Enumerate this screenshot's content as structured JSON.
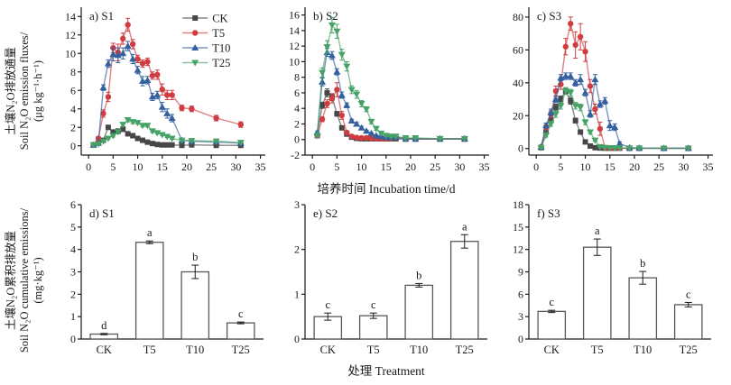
{
  "labels": {
    "flux_ylabel_zh": "土壤N₂O排放通量",
    "flux_ylabel_en": "Soil N₂O emission fluxes/",
    "flux_ylabel_unit": "(μg kg⁻¹·h⁻¹)",
    "cum_ylabel_zh": "土壤N₂O累积排放量",
    "cum_ylabel_en": "Soil N₂O cumulative emissions/",
    "cum_ylabel_unit": "(mg·kg⁻¹)",
    "incubation_xlabel": "培养时间 Incubation time/d",
    "treatment_xlabel": "处理 Treatment"
  },
  "colors": {
    "ck": "#474747",
    "t5": "#cf3d40",
    "t10": "#33609f",
    "t25": "#46a266"
  },
  "chart_data": [
    {
      "id": "a",
      "type": "line",
      "panel_label": "a) S1",
      "legend": true,
      "x": [
        1,
        2,
        3,
        4,
        5,
        6,
        7,
        8,
        9,
        10,
        11,
        12,
        13,
        14,
        15,
        16,
        17,
        19,
        21,
        26,
        31
      ],
      "xlim": [
        -1.5,
        36
      ],
      "xticks": [
        0,
        5,
        10,
        15,
        20,
        25,
        30,
        35
      ],
      "ylim": [
        -1,
        15
      ],
      "yticks": [
        0,
        2,
        4,
        6,
        8,
        10,
        12,
        14
      ],
      "series": [
        {
          "name": "CK",
          "marker": "square",
          "color": "#474747",
          "values": [
            0.1,
            0.3,
            0.6,
            2.0,
            1.5,
            1.6,
            1.8,
            1.3,
            1.1,
            0.8,
            0.6,
            0.4,
            0.25,
            0.15,
            0.1,
            0.1,
            0.1,
            0.05,
            0.1,
            0.05,
            0.05
          ],
          "err": [
            0.05,
            0.1,
            0.1,
            0.2,
            0.2,
            0.15,
            0.25,
            0.15,
            0.1,
            0.1,
            0.1,
            0.1,
            0.05,
            0.05,
            0.05,
            0.05,
            0.05,
            0.05,
            0.05,
            0.05,
            0.05
          ]
        },
        {
          "name": "T5",
          "marker": "circle",
          "color": "#cf3d40",
          "values": [
            0.1,
            0.8,
            3.5,
            5.3,
            10.6,
            10.1,
            11.6,
            13.1,
            11.0,
            9.4,
            8.9,
            9.1,
            7.6,
            7.7,
            6.1,
            5.5,
            5.5,
            4.1,
            4.0,
            3.0,
            2.3
          ],
          "err": [
            0.1,
            0.2,
            0.4,
            0.5,
            0.5,
            0.9,
            0.6,
            0.7,
            0.5,
            0.4,
            0.4,
            0.4,
            0.4,
            0.5,
            0.6,
            0.5,
            0.5,
            0.3,
            0.3,
            0.3,
            0.3
          ]
        },
        {
          "name": "T10",
          "marker": "triangle-up",
          "color": "#33609f",
          "values": [
            0.1,
            0.3,
            6.3,
            8.9,
            9.9,
            9.8,
            10.0,
            10.8,
            9.4,
            8.2,
            7.0,
            7.1,
            5.3,
            5.5,
            4.2,
            3.5,
            3.0,
            0.6,
            0.5,
            0.4,
            0.3
          ],
          "err": [
            0.05,
            0.1,
            0.3,
            0.4,
            0.7,
            0.8,
            0.6,
            0.5,
            0.5,
            0.4,
            0.5,
            0.4,
            0.4,
            0.4,
            0.5,
            0.5,
            0.4,
            0.2,
            0.1,
            0.1,
            0.1
          ]
        },
        {
          "name": "T25",
          "marker": "triangle-down",
          "color": "#46a266",
          "values": [
            0.1,
            0.2,
            0.5,
            0.8,
            1.1,
            1.5,
            2.3,
            2.8,
            2.6,
            2.5,
            2.2,
            2.2,
            1.6,
            1.4,
            1.2,
            1.0,
            0.8,
            0.6,
            0.55,
            0.5,
            0.35
          ],
          "err": [
            0.05,
            0.05,
            0.1,
            0.1,
            0.15,
            0.2,
            0.2,
            0.2,
            0.2,
            0.15,
            0.15,
            0.15,
            0.15,
            0.1,
            0.1,
            0.1,
            0.1,
            0.1,
            0.1,
            0.05,
            0.05
          ]
        }
      ]
    },
    {
      "id": "b",
      "type": "line",
      "panel_label": "b) S2",
      "legend": false,
      "x": [
        1,
        2,
        3,
        4,
        5,
        6,
        7,
        8,
        9,
        10,
        11,
        12,
        13,
        14,
        15,
        16,
        17,
        19,
        21,
        26,
        31
      ],
      "xlim": [
        -1.5,
        36
      ],
      "xticks": [
        0,
        5,
        10,
        15,
        20,
        25,
        30,
        35
      ],
      "ylim": [
        -2,
        17
      ],
      "yticks": [
        -2,
        0,
        2,
        4,
        6,
        8,
        10,
        12,
        14,
        16
      ],
      "series": [
        {
          "name": "CK",
          "marker": "square",
          "color": "#474747",
          "values": [
            0.5,
            4.4,
            6.0,
            5.4,
            3.3,
            1.5,
            0.7,
            0.3,
            0.15,
            0.1,
            0.1,
            0.1,
            0.1,
            0.1,
            0.1,
            0.1,
            0.1,
            0.05,
            0.05,
            0.05,
            0.05
          ],
          "err": [
            0.2,
            0.4,
            0.5,
            0.4,
            0.3,
            0.2,
            0.1,
            0.1,
            0.05,
            0.05,
            0.05,
            0.05,
            0.05,
            0.05,
            0.05,
            0.05,
            0.05,
            0.05,
            0.05,
            0.05,
            0.05
          ]
        },
        {
          "name": "T5",
          "marker": "circle",
          "color": "#cf3d40",
          "values": [
            0.5,
            2.6,
            4.6,
            5.3,
            6.4,
            3.1,
            0.9,
            0.4,
            0.25,
            0.2,
            0.2,
            0.15,
            0.15,
            0.1,
            0.1,
            0.2,
            0.3,
            0.1,
            0.1,
            0.1,
            0.1
          ],
          "err": [
            0.2,
            0.3,
            0.5,
            0.6,
            0.9,
            0.5,
            0.2,
            0.1,
            0.1,
            0.05,
            0.05,
            0.05,
            0.05,
            0.05,
            0.05,
            0.1,
            0.1,
            0.05,
            0.05,
            0.05,
            0.05
          ]
        },
        {
          "name": "T10",
          "marker": "triangle-up",
          "color": "#33609f",
          "values": [
            0.9,
            7.4,
            11.2,
            10.8,
            8.7,
            5.7,
            4.4,
            2.4,
            2.0,
            1.5,
            1.1,
            0.8,
            0.5,
            0.4,
            0.3,
            0.3,
            0.3,
            0.1,
            0.1,
            0.1,
            0.1
          ],
          "err": [
            0.2,
            0.5,
            0.5,
            0.5,
            0.4,
            0.4,
            0.3,
            0.2,
            0.2,
            0.2,
            0.1,
            0.1,
            0.1,
            0.1,
            0.05,
            0.05,
            0.05,
            0.05,
            0.05,
            0.05,
            0.05
          ]
        },
        {
          "name": "T25",
          "marker": "triangle-down",
          "color": "#46a266",
          "values": [
            0.5,
            8.6,
            11.9,
            14.7,
            13.9,
            10.9,
            9.4,
            6.4,
            5.8,
            4.6,
            3.9,
            2.3,
            1.4,
            0.8,
            0.5,
            0.4,
            0.4,
            0.2,
            0.2,
            0.1,
            0.1
          ],
          "err": [
            0.2,
            0.6,
            0.8,
            1.0,
            0.9,
            0.7,
            0.6,
            0.5,
            0.5,
            0.4,
            0.3,
            0.3,
            0.2,
            0.1,
            0.1,
            0.1,
            0.1,
            0.05,
            0.05,
            0.05,
            0.05
          ]
        }
      ]
    },
    {
      "id": "c",
      "type": "line",
      "panel_label": "c) S3",
      "legend": false,
      "x": [
        1,
        2,
        3,
        4,
        5,
        6,
        7,
        8,
        9,
        10,
        11,
        12,
        13,
        14,
        15,
        16,
        17,
        19,
        21,
        26,
        31
      ],
      "xlim": [
        -1.5,
        36
      ],
      "xticks": [
        0,
        5,
        10,
        15,
        20,
        25,
        30,
        35
      ],
      "ylim": [
        -4,
        86
      ],
      "yticks": [
        0,
        20,
        40,
        60,
        80
      ],
      "series": [
        {
          "name": "CK",
          "marker": "square",
          "color": "#474747",
          "values": [
            0.5,
            10,
            17,
            25,
            30,
            35,
            29,
            17,
            10,
            4,
            1.5,
            0.5,
            0.3,
            0.2,
            0.2,
            0.2,
            0.2,
            0.1,
            0.1,
            0.1,
            0.1
          ],
          "err": [
            0.3,
            1,
            1.5,
            2,
            2,
            2,
            2,
            1.5,
            1,
            0.5,
            0.3,
            0.2,
            0.2,
            0.1,
            0.1,
            0.1,
            0.1,
            0.1,
            0.1,
            0.1,
            0.1
          ]
        },
        {
          "name": "T5",
          "marker": "circle",
          "color": "#cf3d40",
          "values": [
            1,
            13,
            21,
            35,
            39,
            62,
            76,
            63,
            68,
            59,
            38,
            24,
            12,
            0.5,
            0.3,
            0.3,
            0.3,
            0.2,
            0.2,
            0.2,
            0.2
          ],
          "err": [
            0.5,
            1.5,
            2,
            3,
            3,
            5,
            4,
            8,
            8,
            6,
            4,
            3,
            4,
            0.3,
            0.2,
            0.2,
            0.2,
            0.1,
            0.1,
            0.1,
            0.1
          ]
        },
        {
          "name": "T10",
          "marker": "triangle-up",
          "color": "#33609f",
          "values": [
            1,
            14,
            22,
            30,
            43,
            44,
            44,
            40,
            42,
            34,
            21,
            42,
            27,
            29,
            14,
            13,
            3,
            0.5,
            0.3,
            0.2,
            0.2
          ],
          "err": [
            0.5,
            1.5,
            2,
            2,
            2,
            2,
            2,
            2,
            3,
            2,
            2,
            3,
            2,
            2,
            3,
            2,
            1,
            0.3,
            0.2,
            0.1,
            0.1
          ]
        },
        {
          "name": "T25",
          "marker": "triangle-down",
          "color": "#46a266",
          "values": [
            0.5,
            8,
            15,
            21,
            26,
            35,
            34,
            26,
            25,
            16,
            10,
            5,
            1,
            0.5,
            0.3,
            0.3,
            0.3,
            0.2,
            0.2,
            0.1,
            0.1
          ],
          "err": [
            0.3,
            1,
            1.5,
            2,
            2,
            2,
            2,
            2,
            2,
            1.5,
            1,
            0.5,
            0.3,
            0.2,
            0.2,
            0.2,
            0.2,
            0.1,
            0.1,
            0.1,
            0.1
          ]
        }
      ]
    },
    {
      "id": "d",
      "type": "bar",
      "panel_label": "d) S1",
      "categories": [
        "CK",
        "T5",
        "T10",
        "T25"
      ],
      "values": [
        0.22,
        4.32,
        3.0,
        0.72
      ],
      "err": [
        0.03,
        0.06,
        0.3,
        0.04
      ],
      "letters": [
        "d",
        "a",
        "b",
        "c"
      ],
      "ylim": [
        0,
        6
      ],
      "yticks": [
        0,
        1,
        2,
        3,
        4,
        5,
        6
      ]
    },
    {
      "id": "e",
      "type": "bar",
      "panel_label": "e) S2",
      "categories": [
        "CK",
        "T5",
        "T10",
        "T25"
      ],
      "values": [
        0.5,
        0.52,
        1.2,
        2.18
      ],
      "err": [
        0.08,
        0.06,
        0.04,
        0.15
      ],
      "letters": [
        "c",
        "c",
        "b",
        "a"
      ],
      "ylim": [
        0,
        3
      ],
      "yticks": [
        0,
        1,
        2,
        3
      ]
    },
    {
      "id": "f",
      "type": "bar",
      "panel_label": "f) S3",
      "categories": [
        "CK",
        "T5",
        "T10",
        "T25"
      ],
      "values": [
        3.7,
        12.3,
        8.2,
        4.6
      ],
      "err": [
        0.15,
        1.1,
        0.85,
        0.3
      ],
      "letters": [
        "c",
        "a",
        "b",
        "c"
      ],
      "ylim": [
        0,
        18
      ],
      "yticks": [
        0,
        3,
        6,
        9,
        12,
        15,
        18
      ]
    }
  ]
}
